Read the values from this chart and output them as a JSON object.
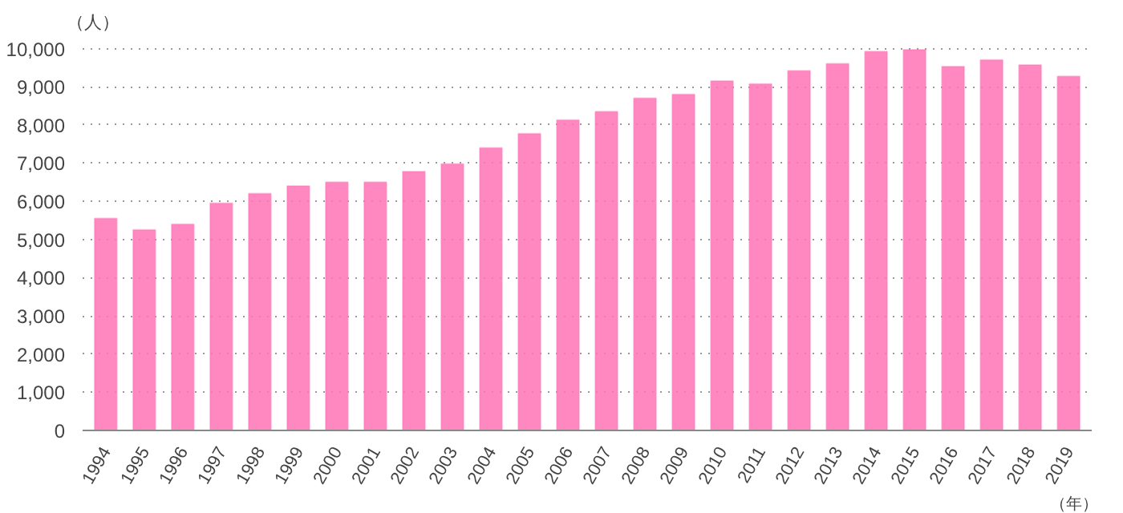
{
  "chart_data": {
    "type": "bar",
    "ylabel": "（人）",
    "xlabel": "（年）",
    "categories": [
      "1994",
      "1995",
      "1996",
      "1997",
      "1998",
      "1999",
      "2000",
      "2001",
      "2002",
      "2003",
      "2004",
      "2005",
      "2006",
      "2007",
      "2008",
      "2009",
      "2010",
      "2011",
      "2012",
      "2013",
      "2014",
      "2015",
      "2016",
      "2017",
      "2018",
      "2019"
    ],
    "values": [
      5550,
      5250,
      5400,
      5950,
      6200,
      6400,
      6500,
      6500,
      6780,
      6980,
      7400,
      7770,
      8130,
      8350,
      8700,
      8800,
      9150,
      9070,
      9420,
      9600,
      9920,
      9970,
      9530,
      9700,
      9570,
      9270
    ],
    "color": "#ff73b5",
    "ylim": [
      0,
      10000
    ],
    "yticks": [
      {
        "value": 0,
        "label": "0"
      },
      {
        "value": 1000,
        "label": "1,000"
      },
      {
        "value": 2000,
        "label": "2,000"
      },
      {
        "value": 3000,
        "label": "3,000"
      },
      {
        "value": 4000,
        "label": "4,000"
      },
      {
        "value": 5000,
        "label": "5,000"
      },
      {
        "value": 6000,
        "label": "6,000"
      },
      {
        "value": 7000,
        "label": "7,000"
      },
      {
        "value": 8000,
        "label": "8,000"
      },
      {
        "value": 9000,
        "label": "9,000"
      },
      {
        "value": 10000,
        "label": "10,000"
      }
    ],
    "grid": "y"
  }
}
